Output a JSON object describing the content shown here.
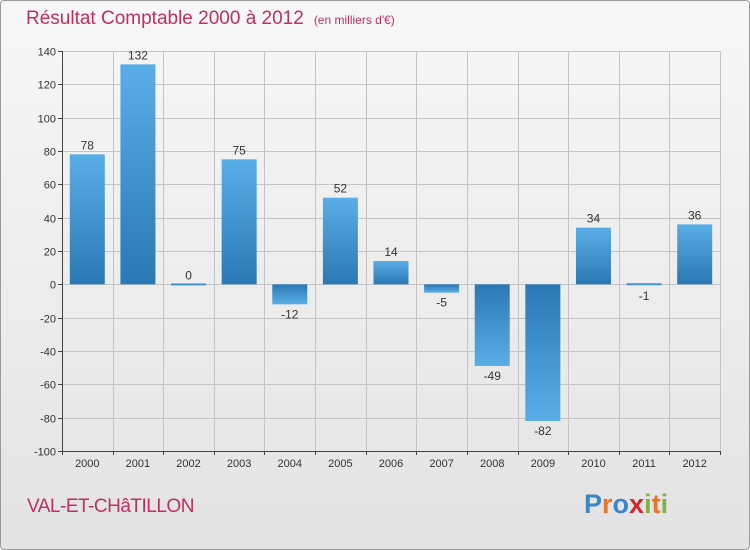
{
  "header": {
    "title": "Résultat Comptable 2000 à 2012",
    "unit": "(en milliers d'€)"
  },
  "footer": {
    "commune": "VAL-ET-CHâTILLON",
    "logo_letters": [
      "P",
      "r",
      "o",
      "x",
      "i",
      "t",
      "i"
    ],
    "logo_colors": [
      "#3a86c8",
      "#e8742b",
      "#3a86c8",
      "#d6252a",
      "#7cb342",
      "#e8742b",
      "#7cb342"
    ]
  },
  "chart_data": {
    "type": "bar",
    "title": "Résultat Comptable 2000 à 2012",
    "subtitle": "(en milliers d'€)",
    "xlabel": "",
    "ylabel": "",
    "categories": [
      "2000",
      "2001",
      "2002",
      "2003",
      "2004",
      "2005",
      "2006",
      "2007",
      "2008",
      "2009",
      "2010",
      "2011",
      "2012"
    ],
    "values": [
      78,
      132,
      0,
      75,
      -12,
      52,
      14,
      -5,
      -49,
      -82,
      34,
      -1,
      36
    ],
    "value_labels": [
      "78",
      "132",
      "0",
      "75",
      "-12",
      "52",
      "14",
      "-5",
      "-49",
      "-82",
      "34",
      "-1",
      "36"
    ],
    "ylim": [
      -100,
      140
    ],
    "yticks": [
      -100,
      -80,
      -60,
      -40,
      -20,
      0,
      20,
      40,
      60,
      80,
      100,
      120,
      140
    ],
    "ytick_labels": [
      "-100",
      "-80",
      "-60",
      "-40",
      "-20",
      "0",
      "20",
      "40",
      "60",
      "80",
      "100",
      "120",
      "140"
    ],
    "grid": true,
    "colors": {
      "bar_light": "#5aaee8",
      "bar_dark": "#2a78b4",
      "grid": "#c4c4c4",
      "axis": "#444444",
      "text": "#333333"
    }
  }
}
